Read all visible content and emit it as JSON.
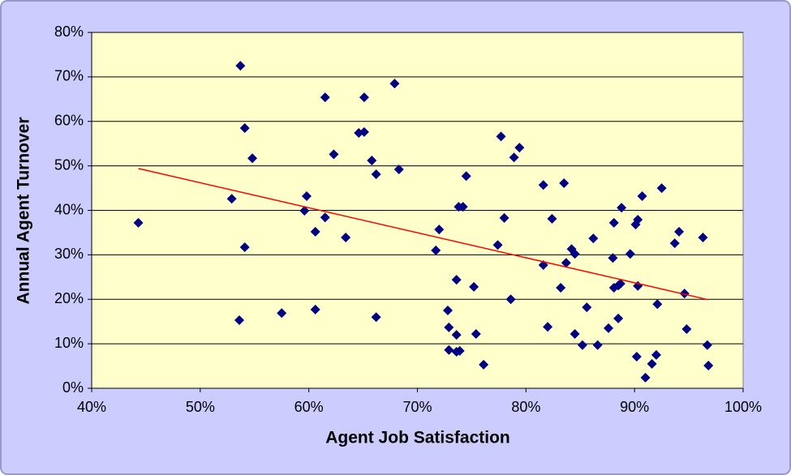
{
  "chart_data": {
    "type": "scatter",
    "x_label": "Agent Job Satisfaction",
    "y_label": "Annual Agent Turnover",
    "x": [
      44.3,
      53.7,
      54.1,
      54.8,
      52.9,
      54.1,
      53.6,
      57.5,
      61.5,
      62.3,
      59.8,
      59.6,
      61.5,
      60.6,
      63.4,
      60.6,
      65.1,
      64.6,
      65.1,
      65.8,
      66.2,
      67.9,
      68.3,
      66.2,
      71.7,
      72.0,
      72.8,
      72.9,
      72.9,
      73.6,
      73.6,
      73.6,
      73.9,
      73.8,
      74.2,
      74.5,
      75.2,
      75.4,
      76.1,
      77.4,
      77.7,
      78.0,
      78.6,
      78.9,
      79.4,
      81.6,
      81.6,
      82.0,
      82.4,
      83.2,
      83.5,
      83.7,
      84.2,
      84.5,
      84.5,
      85.2,
      85.6,
      86.2,
      86.6,
      87.6,
      88.0,
      88.1,
      88.1,
      88.5,
      88.5,
      88.7,
      88.8,
      89.6,
      90.1,
      90.3,
      90.3,
      90.2,
      90.7,
      91.0,
      91.6,
      92.0,
      92.1,
      92.5,
      93.7,
      94.1,
      94.6,
      94.8,
      96.3,
      96.7,
      96.8
    ],
    "values": [
      37.2,
      72.5,
      58.5,
      51.7,
      42.6,
      31.7,
      15.3,
      16.9,
      65.4,
      52.6,
      43.2,
      39.9,
      38.4,
      35.2,
      33.9,
      17.7,
      65.4,
      57.4,
      57.6,
      51.2,
      48.1,
      68.5,
      49.2,
      16.0,
      31.0,
      35.7,
      17.5,
      13.7,
      8.6,
      12.0,
      24.4,
      8.2,
      8.4,
      40.8,
      40.8,
      47.7,
      22.8,
      12.2,
      5.3,
      32.2,
      56.6,
      38.3,
      20.0,
      51.9,
      54.1,
      45.7,
      27.7,
      13.8,
      38.1,
      22.6,
      46.1,
      28.2,
      31.3,
      30.2,
      12.2,
      9.7,
      18.2,
      33.7,
      9.7,
      13.5,
      29.3,
      37.2,
      22.6,
      15.7,
      23.1,
      23.5,
      40.6,
      30.2,
      36.8,
      37.9,
      23.0,
      7.1,
      43.2,
      2.4,
      5.5,
      7.5,
      18.9,
      45.0,
      32.6,
      35.2,
      21.3,
      13.3,
      33.9,
      9.7,
      5.1
    ],
    "color": "#000080",
    "trendline": {
      "x": [
        44.3,
        96.8
      ],
      "y": [
        49.4,
        19.9
      ],
      "color": "#ff0000"
    },
    "xlim": [
      40,
      100
    ],
    "xticks": [
      {
        "value": 40,
        "label": "40%"
      },
      {
        "value": 50,
        "label": "50%"
      },
      {
        "value": 60,
        "label": "60%"
      },
      {
        "value": 70,
        "label": "70%"
      },
      {
        "value": 80,
        "label": "80%"
      },
      {
        "value": 90,
        "label": "90%"
      },
      {
        "value": 100,
        "label": "100%"
      }
    ],
    "ylim": [
      0,
      80
    ],
    "yticks": [
      {
        "value": 0,
        "label": "0%"
      },
      {
        "value": 10,
        "label": "10%"
      },
      {
        "value": 20,
        "label": "20%"
      },
      {
        "value": 30,
        "label": "30%"
      },
      {
        "value": 40,
        "label": "40%"
      },
      {
        "value": 50,
        "label": "50%"
      },
      {
        "value": 60,
        "label": "60%"
      },
      {
        "value": 70,
        "label": "70%"
      },
      {
        "value": 80,
        "label": "80%"
      }
    ],
    "grid": true
  }
}
